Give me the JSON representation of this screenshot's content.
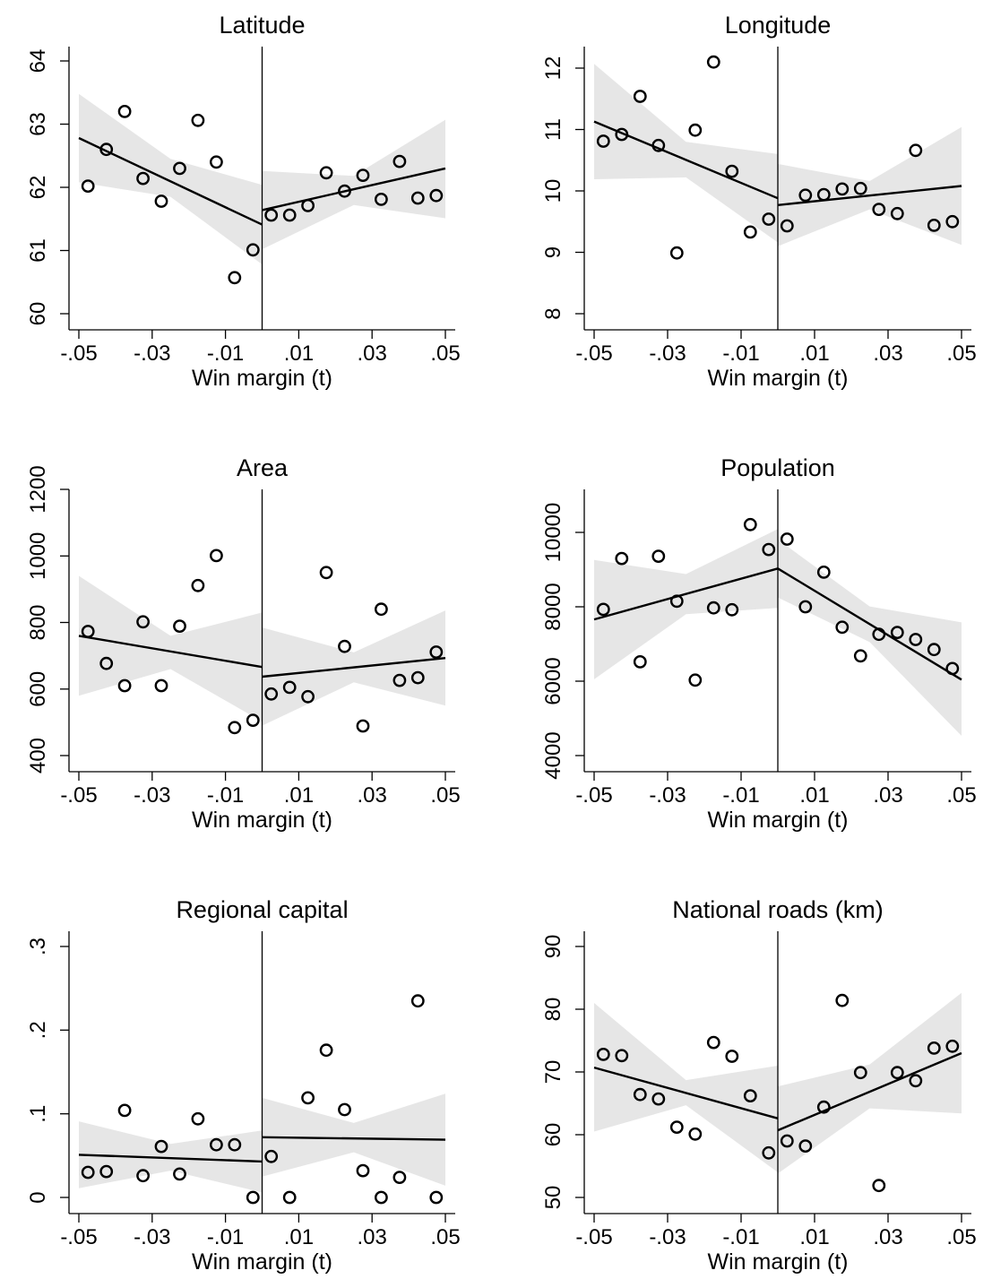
{
  "chart_data": [
    {
      "type": "scatter",
      "title": "Latitude",
      "xlabel": "Win margin (t)",
      "ylabel": "",
      "xlim": [
        -0.05,
        0.05
      ],
      "ylim": [
        60,
        64
      ],
      "xticks": [
        -0.05,
        -0.03,
        -0.01,
        0.01,
        0.03,
        0.05
      ],
      "xtick_labels": [
        "-.05",
        "-.03",
        "-.01",
        ".01",
        ".03",
        ".05"
      ],
      "yticks": [
        60,
        61,
        62,
        63,
        64
      ],
      "ytick_labels": [
        "60",
        "61",
        "62",
        "63",
        "64"
      ],
      "cutoff": 0,
      "x": [
        -0.0475,
        -0.0425,
        -0.0375,
        -0.0325,
        -0.0275,
        -0.0225,
        -0.0175,
        -0.0125,
        -0.0075,
        -0.0025,
        0.0025,
        0.0075,
        0.0125,
        0.0175,
        0.0225,
        0.0275,
        0.0325,
        0.0375,
        0.0425,
        0.0475
      ],
      "y": [
        62.02,
        62.6,
        63.2,
        62.14,
        61.78,
        62.3,
        63.06,
        62.4,
        60.57,
        61.01,
        61.56,
        61.56,
        61.71,
        62.23,
        61.94,
        62.19,
        61.81,
        62.41,
        61.83,
        61.87
      ],
      "fit_left": {
        "x": [
          -0.05,
          0
        ],
        "y": [
          62.78,
          61.41
        ]
      },
      "fit_right": {
        "x": [
          0,
          0.05
        ],
        "y": [
          61.64,
          62.3
        ]
      },
      "ci_left": {
        "x": [
          -0.05,
          -0.025,
          0
        ],
        "lower": [
          62.08,
          61.85,
          60.78
        ],
        "upper": [
          63.48,
          62.45,
          62.04
        ]
      },
      "ci_right": {
        "x": [
          0,
          0.025,
          0.05
        ],
        "lower": [
          61.02,
          61.72,
          61.51
        ],
        "upper": [
          62.26,
          62.18,
          63.07
        ]
      }
    },
    {
      "type": "scatter",
      "title": "Longitude",
      "xlabel": "Win margin (t)",
      "ylabel": "",
      "xlim": [
        -0.05,
        0.05
      ],
      "ylim": [
        8,
        12
      ],
      "xticks": [
        -0.05,
        -0.03,
        -0.01,
        0.01,
        0.03,
        0.05
      ],
      "xtick_labels": [
        "-.05",
        "-.03",
        "-.01",
        ".01",
        ".03",
        ".05"
      ],
      "yticks": [
        8,
        9,
        10,
        11,
        12
      ],
      "ytick_labels": [
        "8",
        "9",
        "10",
        "11",
        "12"
      ],
      "cutoff": 0,
      "x": [
        -0.0475,
        -0.0425,
        -0.0375,
        -0.0325,
        -0.0275,
        -0.0225,
        -0.0175,
        -0.0125,
        -0.0075,
        -0.0025,
        0.0025,
        0.0075,
        0.0125,
        0.0175,
        0.0225,
        0.0275,
        0.0325,
        0.0375,
        0.0425,
        0.0475
      ],
      "y": [
        10.81,
        10.92,
        11.54,
        10.74,
        8.99,
        10.99,
        12.1,
        10.32,
        9.33,
        9.54,
        9.43,
        9.93,
        9.94,
        10.03,
        10.04,
        9.7,
        9.63,
        10.66,
        9.44,
        9.5
      ],
      "fit_left": {
        "x": [
          -0.05,
          0
        ],
        "y": [
          11.13,
          9.88
        ]
      },
      "fit_right": {
        "x": [
          0,
          0.05
        ],
        "y": [
          9.77,
          10.08
        ]
      },
      "ci_left": {
        "x": [
          -0.05,
          -0.025,
          0
        ],
        "lower": [
          10.19,
          10.22,
          9.16
        ],
        "upper": [
          12.07,
          10.8,
          10.6
        ]
      },
      "ci_right": {
        "x": [
          0,
          0.025,
          0.05
        ],
        "lower": [
          9.1,
          9.7,
          9.12
        ],
        "upper": [
          10.44,
          10.16,
          11.04
        ]
      }
    },
    {
      "type": "scatter",
      "title": "Area",
      "xlabel": "Win margin (t)",
      "ylabel": "",
      "xlim": [
        -0.05,
        0.05
      ],
      "ylim": [
        400,
        1200
      ],
      "xticks": [
        -0.05,
        -0.03,
        -0.01,
        0.01,
        0.03,
        0.05
      ],
      "xtick_labels": [
        "-.05",
        "-.03",
        "-.01",
        ".01",
        ".03",
        ".05"
      ],
      "yticks": [
        400,
        600,
        800,
        1000,
        1200
      ],
      "ytick_labels": [
        "400",
        "600",
        "800",
        "1000",
        "1200"
      ],
      "cutoff": 0,
      "x": [
        -0.0475,
        -0.0425,
        -0.0375,
        -0.0325,
        -0.0275,
        -0.0225,
        -0.0175,
        -0.0125,
        -0.0075,
        -0.0025,
        0.0025,
        0.0075,
        0.0125,
        0.0175,
        0.0225,
        0.0275,
        0.0325,
        0.0375,
        0.0425,
        0.0475
      ],
      "y": [
        773,
        677,
        610,
        802,
        610,
        789,
        911,
        1001,
        484,
        506,
        585,
        605,
        577,
        950,
        728,
        489,
        840,
        626,
        634,
        711
      ],
      "fit_left": {
        "x": [
          -0.05,
          0
        ],
        "y": [
          760,
          666
        ]
      },
      "fit_right": {
        "x": [
          0,
          0.05
        ],
        "y": [
          637,
          693
        ]
      },
      "ci_left": {
        "x": [
          -0.05,
          -0.025,
          0
        ],
        "lower": [
          580,
          660,
          502
        ],
        "upper": [
          940,
          760,
          830
        ]
      },
      "ci_right": {
        "x": [
          0,
          0.025,
          0.05
        ],
        "lower": [
          490,
          620,
          550
        ],
        "upper": [
          785,
          710,
          836
        ]
      }
    },
    {
      "type": "scatter",
      "title": "Population",
      "xlabel": "Win margin (t)",
      "ylabel": "",
      "xlim": [
        -0.05,
        0.05
      ],
      "ylim": [
        4000,
        11000
      ],
      "xticks": [
        -0.05,
        -0.03,
        -0.01,
        0.01,
        0.03,
        0.05
      ],
      "xtick_labels": [
        "-.05",
        "-.03",
        "-.01",
        ".01",
        ".03",
        ".05"
      ],
      "yticks": [
        4000,
        6000,
        8000,
        10000
      ],
      "ytick_labels": [
        "4000",
        "6000",
        "8000",
        "10000"
      ],
      "cutoff": 0,
      "x": [
        -0.0475,
        -0.0425,
        -0.0375,
        -0.0325,
        -0.0275,
        -0.0225,
        -0.0175,
        -0.0125,
        -0.0075,
        -0.0025,
        0.0025,
        0.0075,
        0.0125,
        0.0175,
        0.0225,
        0.0275,
        0.0325,
        0.0375,
        0.0425,
        0.0475
      ],
      "y": [
        7930,
        9300,
        6520,
        9360,
        8150,
        6030,
        7970,
        7920,
        10210,
        9540,
        9820,
        8000,
        8930,
        7450,
        6680,
        7260,
        7310,
        7120,
        6850,
        6340
      ],
      "fit_left": {
        "x": [
          -0.05,
          0
        ],
        "y": [
          7660,
          9030
        ]
      },
      "fit_right": {
        "x": [
          0,
          0.05
        ],
        "y": [
          9030,
          6040
        ]
      },
      "ci_left": {
        "x": [
          -0.05,
          -0.025,
          0
        ],
        "lower": [
          6050,
          7800,
          7970
        ],
        "upper": [
          9260,
          8880,
          10090
        ]
      },
      "ci_right": {
        "x": [
          0,
          0.025,
          0.05
        ],
        "lower": [
          8250,
          7050,
          4530
        ],
        "upper": [
          9810,
          8010,
          7580
        ]
      }
    },
    {
      "type": "scatter",
      "title": "Regional capital",
      "xlabel": "Win margin (t)",
      "ylabel": "",
      "xlim": [
        -0.05,
        0.05
      ],
      "ylim": [
        0,
        0.3
      ],
      "xticks": [
        -0.05,
        -0.03,
        -0.01,
        0.01,
        0.03,
        0.05
      ],
      "xtick_labels": [
        "-.05",
        "-.03",
        "-.01",
        ".01",
        ".03",
        ".05"
      ],
      "yticks": [
        0,
        0.1,
        0.2,
        0.3
      ],
      "ytick_labels": [
        "0",
        ".1",
        ".2",
        ".3"
      ],
      "cutoff": 0,
      "x": [
        -0.0475,
        -0.0425,
        -0.0375,
        -0.0325,
        -0.0275,
        -0.0225,
        -0.0175,
        -0.0125,
        -0.0075,
        -0.0025,
        0.0025,
        0.0075,
        0.0125,
        0.0175,
        0.0225,
        0.0275,
        0.0325,
        0.0375,
        0.0425,
        0.0475
      ],
      "y": [
        0.03,
        0.031,
        0.104,
        0.026,
        0.061,
        0.028,
        0.094,
        0.063,
        0.063,
        0.0,
        0.049,
        0.0,
        0.119,
        0.176,
        0.105,
        0.032,
        0.0,
        0.024,
        0.235,
        0.0
      ],
      "fit_left": {
        "x": [
          -0.05,
          0
        ],
        "y": [
          0.051,
          0.043
        ]
      },
      "fit_right": {
        "x": [
          0,
          0.05
        ],
        "y": [
          0.072,
          0.069
        ]
      },
      "ci_left": {
        "x": [
          -0.05,
          -0.025,
          0
        ],
        "lower": [
          0.011,
          0.032,
          0.006
        ],
        "upper": [
          0.091,
          0.064,
          0.08
        ]
      },
      "ci_right": {
        "x": [
          0,
          0.025,
          0.05
        ],
        "lower": [
          0.025,
          0.054,
          0.014
        ],
        "upper": [
          0.119,
          0.089,
          0.124
        ]
      }
    },
    {
      "type": "scatter",
      "title": "National roads (km)",
      "xlabel": "Win margin (t)",
      "ylabel": "",
      "xlim": [
        -0.05,
        0.05
      ],
      "ylim": [
        50,
        90
      ],
      "xticks": [
        -0.05,
        -0.03,
        -0.01,
        0.01,
        0.03,
        0.05
      ],
      "xtick_labels": [
        "-.05",
        "-.03",
        "-.01",
        ".01",
        ".03",
        ".05"
      ],
      "yticks": [
        50,
        60,
        70,
        80,
        90
      ],
      "ytick_labels": [
        "50",
        "60",
        "70",
        "80",
        "90"
      ],
      "cutoff": 0,
      "x": [
        -0.0475,
        -0.0425,
        -0.0375,
        -0.0325,
        -0.0275,
        -0.0225,
        -0.0175,
        -0.0125,
        -0.0075,
        -0.0025,
        0.0025,
        0.0075,
        0.0125,
        0.0175,
        0.0225,
        0.0275,
        0.0325,
        0.0375,
        0.0425,
        0.0475
      ],
      "y": [
        72.8,
        72.6,
        66.4,
        65.7,
        61.2,
        60.1,
        74.7,
        72.5,
        66.2,
        57.1,
        59.0,
        58.2,
        64.4,
        81.4,
        69.9,
        51.9,
        69.9,
        68.6,
        73.8,
        74.1
      ],
      "fit_left": {
        "x": [
          -0.05,
          0
        ],
        "y": [
          70.7,
          62.6
        ]
      },
      "fit_right": {
        "x": [
          0,
          0.05
        ],
        "y": [
          60.7,
          73.0
        ]
      },
      "ci_left": {
        "x": [
          -0.05,
          -0.025,
          0
        ],
        "lower": [
          60.5,
          64.7,
          54.0
        ],
        "upper": [
          81.0,
          68.7,
          71.0
        ]
      },
      "ci_right": {
        "x": [
          0,
          0.025,
          0.05
        ],
        "lower": [
          53.8,
          64.2,
          63.4
        ],
        "upper": [
          67.7,
          71.2,
          82.6
        ]
      }
    }
  ]
}
